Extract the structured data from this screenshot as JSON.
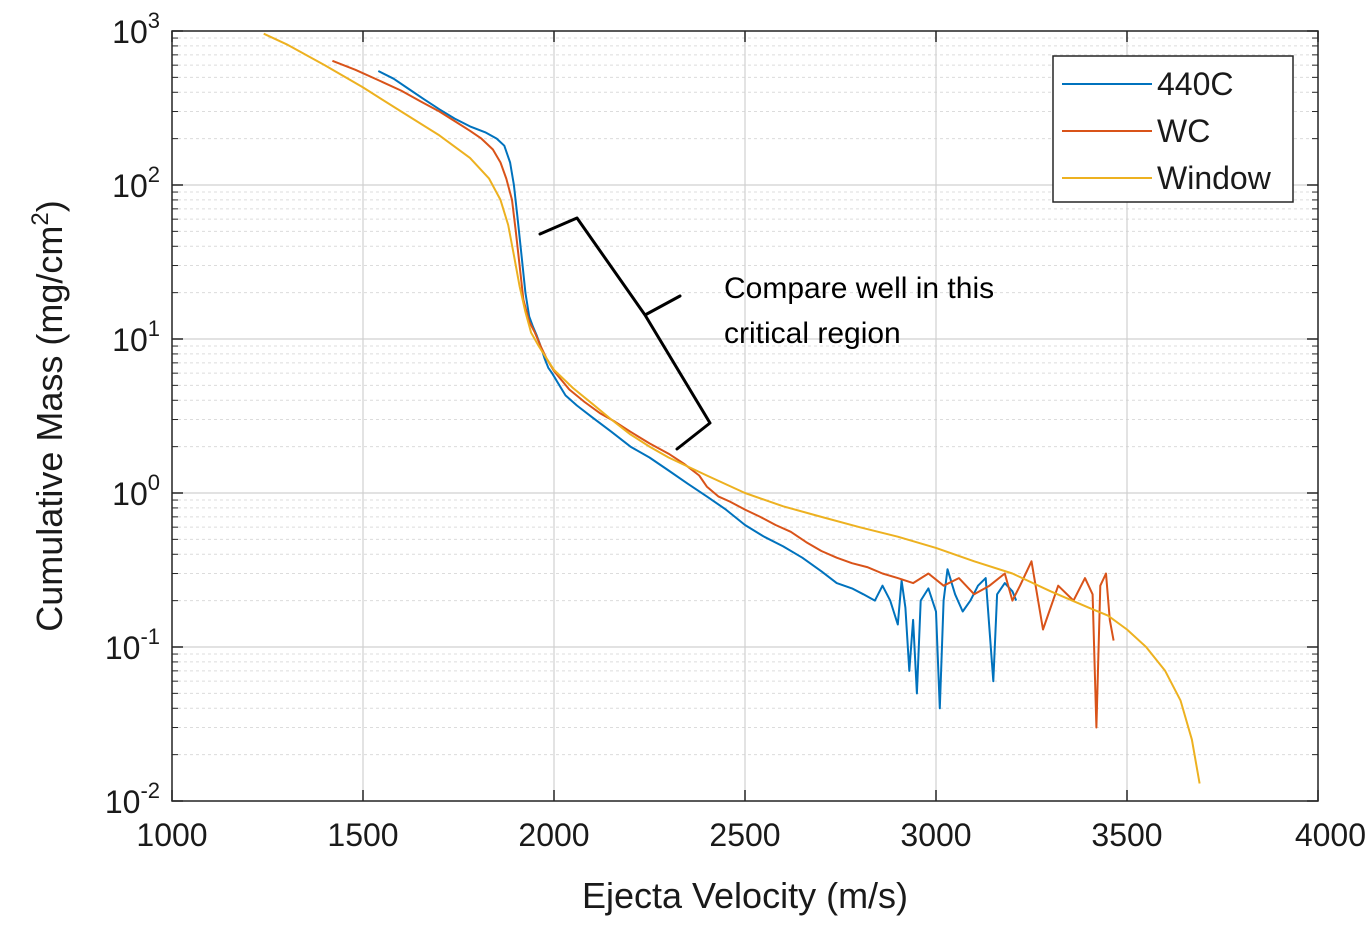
{
  "chart_data": {
    "type": "line",
    "xlabel": "Ejecta Velocity (m/s)",
    "ylabel": "Cumulative Mass (mg/cm",
    "ylabel_sup": "2",
    "ylabel_close": ")",
    "xlim": [
      1000,
      4000
    ],
    "ylim": [
      0.01,
      1000
    ],
    "y_scale": "log",
    "grid": true,
    "legend_position": "top-right",
    "x_ticks": [
      1000,
      1500,
      2000,
      2500,
      3000,
      3500,
      4000
    ],
    "x_tick_labels": [
      "1000",
      "1500",
      "2000",
      "2500",
      "3000",
      "3500",
      "4000"
    ],
    "y_ticks": [
      {
        "value": 0.01,
        "base": "10",
        "exp": "-2"
      },
      {
        "value": 0.1,
        "base": "10",
        "exp": "-1"
      },
      {
        "value": 1,
        "base": "10",
        "exp": "0"
      },
      {
        "value": 10,
        "base": "10",
        "exp": "1"
      },
      {
        "value": 100,
        "base": "10",
        "exp": "2"
      },
      {
        "value": 1000,
        "base": "10",
        "exp": "3"
      }
    ],
    "series": [
      {
        "name": "440C",
        "color": "#0072BD",
        "points": [
          [
            1540,
            550
          ],
          [
            1580,
            490
          ],
          [
            1620,
            420
          ],
          [
            1660,
            360
          ],
          [
            1700,
            310
          ],
          [
            1740,
            270
          ],
          [
            1780,
            240
          ],
          [
            1820,
            220
          ],
          [
            1850,
            200
          ],
          [
            1870,
            180
          ],
          [
            1885,
            140
          ],
          [
            1895,
            100
          ],
          [
            1905,
            60
          ],
          [
            1915,
            35
          ],
          [
            1925,
            20
          ],
          [
            1935,
            14
          ],
          [
            1945,
            12
          ],
          [
            1955,
            10.5
          ],
          [
            1965,
            9
          ],
          [
            1975,
            7.5
          ],
          [
            1985,
            6.5
          ],
          [
            1995,
            6
          ],
          [
            2010,
            5.2
          ],
          [
            2030,
            4.3
          ],
          [
            2060,
            3.7
          ],
          [
            2100,
            3.1
          ],
          [
            2150,
            2.5
          ],
          [
            2200,
            2.0
          ],
          [
            2250,
            1.7
          ],
          [
            2300,
            1.4
          ],
          [
            2350,
            1.15
          ],
          [
            2400,
            0.95
          ],
          [
            2450,
            0.78
          ],
          [
            2500,
            0.62
          ],
          [
            2550,
            0.52
          ],
          [
            2600,
            0.45
          ],
          [
            2650,
            0.38
          ],
          [
            2700,
            0.31
          ],
          [
            2740,
            0.26
          ],
          [
            2780,
            0.24
          ],
          [
            2810,
            0.22
          ],
          [
            2840,
            0.2
          ],
          [
            2860,
            0.25
          ],
          [
            2880,
            0.2
          ],
          [
            2900,
            0.14
          ],
          [
            2910,
            0.27
          ],
          [
            2920,
            0.18
          ],
          [
            2930,
            0.07
          ],
          [
            2940,
            0.15
          ],
          [
            2950,
            0.05
          ],
          [
            2960,
            0.2
          ],
          [
            2980,
            0.24
          ],
          [
            3000,
            0.17
          ],
          [
            3010,
            0.04
          ],
          [
            3020,
            0.2
          ],
          [
            3030,
            0.32
          ],
          [
            3050,
            0.22
          ],
          [
            3070,
            0.17
          ],
          [
            3090,
            0.2
          ],
          [
            3110,
            0.25
          ],
          [
            3130,
            0.28
          ],
          [
            3150,
            0.06
          ],
          [
            3160,
            0.22
          ],
          [
            3180,
            0.26
          ],
          [
            3200,
            0.23
          ],
          [
            3210,
            0.2
          ]
        ]
      },
      {
        "name": "WC",
        "color": "#D95319",
        "points": [
          [
            1420,
            640
          ],
          [
            1480,
            560
          ],
          [
            1540,
            480
          ],
          [
            1600,
            410
          ],
          [
            1650,
            350
          ],
          [
            1700,
            300
          ],
          [
            1740,
            260
          ],
          [
            1780,
            225
          ],
          [
            1810,
            200
          ],
          [
            1840,
            170
          ],
          [
            1860,
            140
          ],
          [
            1875,
            110
          ],
          [
            1890,
            80
          ],
          [
            1900,
            50
          ],
          [
            1910,
            30
          ],
          [
            1920,
            18
          ],
          [
            1935,
            13
          ],
          [
            1950,
            11
          ],
          [
            1965,
            9
          ],
          [
            1980,
            7.5
          ],
          [
            2000,
            6.2
          ],
          [
            2020,
            5.4
          ],
          [
            2040,
            4.7
          ],
          [
            2080,
            3.9
          ],
          [
            2120,
            3.3
          ],
          [
            2160,
            2.9
          ],
          [
            2200,
            2.5
          ],
          [
            2250,
            2.1
          ],
          [
            2300,
            1.8
          ],
          [
            2340,
            1.55
          ],
          [
            2380,
            1.3
          ],
          [
            2400,
            1.1
          ],
          [
            2430,
            0.95
          ],
          [
            2460,
            0.88
          ],
          [
            2500,
            0.78
          ],
          [
            2540,
            0.7
          ],
          [
            2580,
            0.62
          ],
          [
            2620,
            0.56
          ],
          [
            2660,
            0.48
          ],
          [
            2700,
            0.42
          ],
          [
            2740,
            0.38
          ],
          [
            2780,
            0.35
          ],
          [
            2820,
            0.33
          ],
          [
            2860,
            0.3
          ],
          [
            2900,
            0.28
          ],
          [
            2940,
            0.26
          ],
          [
            2980,
            0.3
          ],
          [
            3020,
            0.25
          ],
          [
            3060,
            0.28
          ],
          [
            3100,
            0.22
          ],
          [
            3140,
            0.25
          ],
          [
            3180,
            0.3
          ],
          [
            3200,
            0.2
          ],
          [
            3220,
            0.25
          ],
          [
            3250,
            0.36
          ],
          [
            3280,
            0.13
          ],
          [
            3320,
            0.25
          ],
          [
            3360,
            0.2
          ],
          [
            3390,
            0.28
          ],
          [
            3410,
            0.22
          ],
          [
            3420,
            0.03
          ],
          [
            3430,
            0.25
          ],
          [
            3445,
            0.3
          ],
          [
            3455,
            0.15
          ],
          [
            3465,
            0.11
          ]
        ]
      },
      {
        "name": "Window",
        "color": "#EDB120",
        "points": [
          [
            1240,
            960
          ],
          [
            1300,
            820
          ],
          [
            1400,
            600
          ],
          [
            1500,
            430
          ],
          [
            1600,
            300
          ],
          [
            1700,
            210
          ],
          [
            1780,
            150
          ],
          [
            1830,
            110
          ],
          [
            1860,
            80
          ],
          [
            1880,
            55
          ],
          [
            1895,
            35
          ],
          [
            1910,
            22
          ],
          [
            1925,
            15
          ],
          [
            1940,
            11
          ],
          [
            1960,
            9
          ],
          [
            1980,
            7.5
          ],
          [
            2000,
            6.3
          ],
          [
            2050,
            4.8
          ],
          [
            2100,
            3.8
          ],
          [
            2150,
            3.0
          ],
          [
            2200,
            2.4
          ],
          [
            2250,
            2.0
          ],
          [
            2300,
            1.7
          ],
          [
            2400,
            1.3
          ],
          [
            2500,
            1.0
          ],
          [
            2600,
            0.82
          ],
          [
            2700,
            0.7
          ],
          [
            2800,
            0.6
          ],
          [
            2900,
            0.52
          ],
          [
            3000,
            0.44
          ],
          [
            3100,
            0.36
          ],
          [
            3200,
            0.3
          ],
          [
            3300,
            0.23
          ],
          [
            3400,
            0.18
          ],
          [
            3450,
            0.16
          ],
          [
            3500,
            0.13
          ],
          [
            3550,
            0.1
          ],
          [
            3600,
            0.07
          ],
          [
            3640,
            0.045
          ],
          [
            3670,
            0.025
          ],
          [
            3690,
            0.013
          ]
        ]
      }
    ],
    "annotation": {
      "lines": [
        "Compare well in this",
        "critical region"
      ],
      "x_range": [
        1950,
        2350
      ],
      "y_range": [
        2.0,
        60
      ]
    }
  }
}
